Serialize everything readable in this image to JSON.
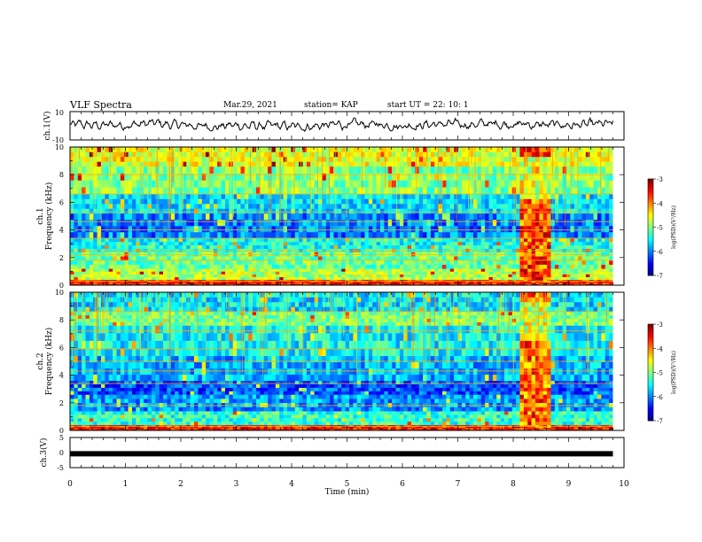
{
  "header": {
    "title": "VLF Spectra",
    "date": "Mar.29, 2021",
    "station": "station= KAP",
    "start": "start  UT  =   22: 10: 1"
  },
  "chart_data": [
    {
      "type": "line",
      "panel": "waveform-ch1",
      "ylabel": "ch.1(V)",
      "ylim": [
        -10,
        10
      ],
      "y_ticks": [
        "10",
        "-10"
      ],
      "x_range_min": [
        0,
        10
      ],
      "series_description_values": "noisy waveform oscillating roughly between -6 and +6 V over 0 to 9.8 min",
      "envelope": [
        {
          "t": 0.0,
          "v": 0.5
        },
        {
          "t": 0.5,
          "v": 0.2
        },
        {
          "t": 1.0,
          "v": 0.8
        },
        {
          "t": 1.5,
          "v": 1.5
        },
        {
          "t": 2.0,
          "v": 0.3
        },
        {
          "t": 2.5,
          "v": -0.3
        },
        {
          "t": 3.0,
          "v": 0.2
        },
        {
          "t": 3.5,
          "v": -0.5
        },
        {
          "t": 4.0,
          "v": -0.8
        },
        {
          "t": 4.5,
          "v": 0.1
        },
        {
          "t": 5.0,
          "v": 0.6
        },
        {
          "t": 5.5,
          "v": 0.9
        },
        {
          "t": 6.0,
          "v": 0.4
        },
        {
          "t": 6.5,
          "v": 1.0
        },
        {
          "t": 7.0,
          "v": 0.8
        },
        {
          "t": 7.5,
          "v": 1.2
        },
        {
          "t": 8.0,
          "v": 1.5
        },
        {
          "t": 8.5,
          "v": 0.4
        },
        {
          "t": 9.0,
          "v": 0.6
        },
        {
          "t": 9.5,
          "v": 0.5
        },
        {
          "t": 9.8,
          "v": 1.0
        }
      ]
    },
    {
      "type": "heatmap",
      "panel": "spectrogram-ch1",
      "ylabel": "ch.1",
      "ylabel2": "Frequency  (kHz)",
      "ylim": [
        0,
        10
      ],
      "y_ticks": [
        "0",
        "2",
        "4",
        "6",
        "8",
        "10"
      ],
      "x_range_min": [
        0,
        10
      ],
      "data_extent_min": [
        0,
        9.8
      ],
      "colorbar": {
        "label": "log(PSD)(V²/Hz)",
        "range": [
          -7,
          -3
        ],
        "ticks": [
          "-3",
          "-4",
          "-5",
          "-6",
          "-7"
        ]
      },
      "bands_khz_logpsd": [
        {
          "f": [
            0.0,
            0.4
          ],
          "v": -3.6
        },
        {
          "f": [
            0.4,
            1.2
          ],
          "v": -4.8
        },
        {
          "f": [
            1.2,
            2.4
          ],
          "v": -5.1
        },
        {
          "f": [
            2.4,
            3.4
          ],
          "v": -5.4
        },
        {
          "f": [
            3.4,
            5.2
          ],
          "v": -6.0
        },
        {
          "f": [
            5.2,
            6.6
          ],
          "v": -5.6
        },
        {
          "f": [
            6.6,
            8.6
          ],
          "v": -5.0
        },
        {
          "f": [
            8.6,
            10.0
          ],
          "v": -4.6
        }
      ],
      "lines_khz": [
        0.3,
        1.8,
        2.2,
        2.5,
        3.4,
        4.0,
        4.6,
        5.3,
        6.6,
        8.0
      ],
      "event": {
        "t_min": [
          8.08,
          8.68
        ],
        "logpsd": -3.8
      }
    },
    {
      "type": "heatmap",
      "panel": "spectrogram-ch2",
      "ylabel": "ch.2",
      "ylabel2": "Frequency  (kHz)",
      "ylim": [
        0,
        10
      ],
      "y_ticks": [
        "0",
        "2",
        "4",
        "6",
        "8",
        "10"
      ],
      "x_range_min": [
        0,
        10
      ],
      "data_extent_min": [
        0,
        9.8
      ],
      "colorbar": {
        "label": "log(PSD)(V²/Hz)",
        "range": [
          -7,
          -3
        ],
        "ticks": [
          "-3",
          "-4",
          "-5",
          "-6",
          "-7"
        ]
      },
      "bands_khz_logpsd": [
        {
          "f": [
            0.0,
            0.4
          ],
          "v": -3.6
        },
        {
          "f": [
            0.4,
            1.4
          ],
          "v": -5.3
        },
        {
          "f": [
            1.4,
            2.6
          ],
          "v": -5.9
        },
        {
          "f": [
            2.6,
            3.6
          ],
          "v": -6.2
        },
        {
          "f": [
            3.6,
            5.4
          ],
          "v": -5.8
        },
        {
          "f": [
            5.4,
            7.6
          ],
          "v": -5.5
        },
        {
          "f": [
            7.6,
            8.6
          ],
          "v": -5.0
        },
        {
          "f": [
            8.6,
            10.0
          ],
          "v": -5.6
        }
      ],
      "lines_khz": [
        0.3,
        1.8,
        3.4,
        4.3,
        5.0,
        5.9,
        7.2,
        8.6
      ],
      "event": {
        "t_min": [
          8.08,
          8.68
        ],
        "logpsd": -3.9
      }
    },
    {
      "type": "line",
      "panel": "waveform-ch3",
      "ylabel": "ch.3(V)",
      "ylim": [
        -5,
        5
      ],
      "y_ticks": [
        "5",
        "0",
        "-5"
      ],
      "x_range_min": [
        0,
        10
      ],
      "series_value_v": -0.4,
      "x_extent_min": [
        0,
        9.8
      ]
    }
  ],
  "x_axis": {
    "label": "Time  (min)",
    "ticks": [
      "0",
      "1",
      "2",
      "3",
      "4",
      "5",
      "6",
      "7",
      "8",
      "9",
      "10"
    ]
  }
}
